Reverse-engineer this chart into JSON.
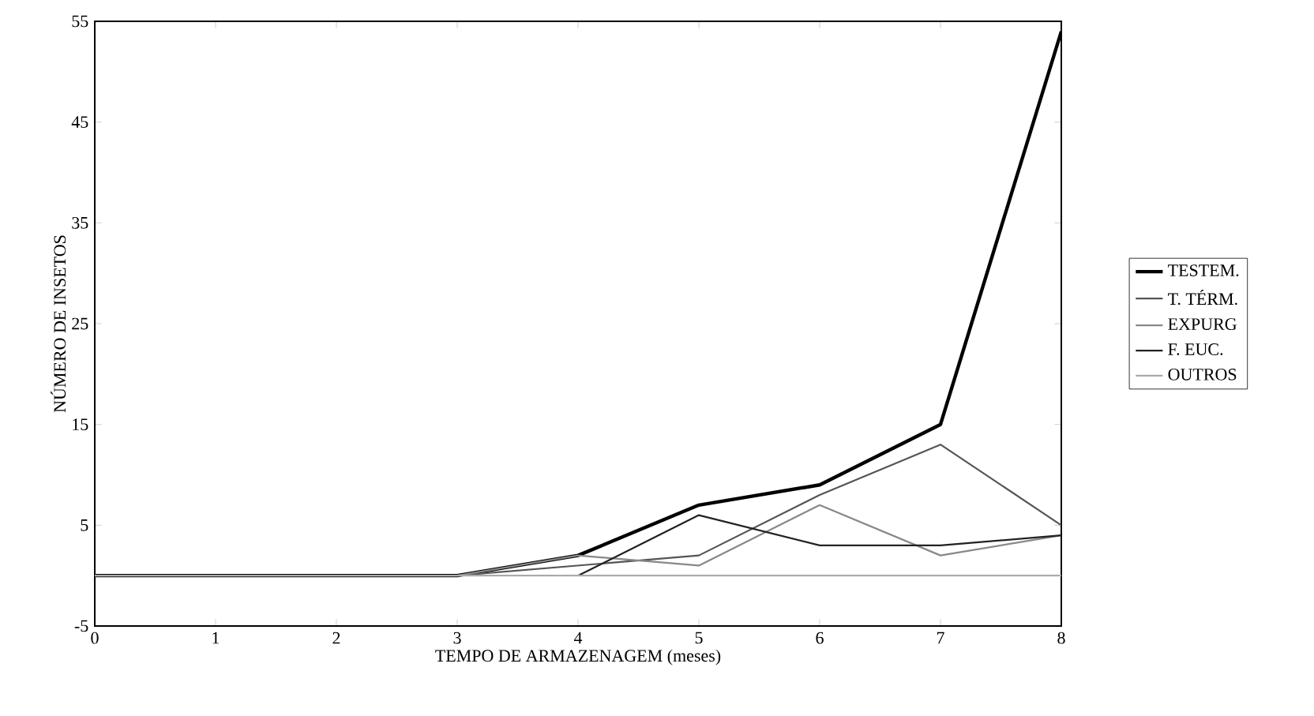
{
  "chart_data": {
    "type": "line",
    "xlabel": "TEMPO DE ARMAZENAGEM (meses)",
    "ylabel": "NÚMERO DE INSETOS",
    "x": [
      0,
      1,
      2,
      3,
      4,
      5,
      6,
      7,
      8
    ],
    "series": [
      {
        "name": "TESTEM.",
        "color": "#000000",
        "values": [
          0,
          0,
          0,
          0,
          2,
          7,
          9,
          15,
          54
        ]
      },
      {
        "name": "T. TÉRM.",
        "color": "#555555",
        "values": [
          0,
          0,
          0,
          0,
          1,
          2,
          8,
          13,
          5
        ]
      },
      {
        "name": "EXPURG",
        "color": "#888888",
        "values": [
          0,
          0,
          0,
          0,
          2,
          1,
          7,
          2,
          4
        ]
      },
      {
        "name": "F. EUC.",
        "color": "#222222",
        "values": [
          null,
          null,
          null,
          null,
          0,
          6,
          3,
          3,
          4
        ]
      },
      {
        "name": "OUTROS",
        "color": "#aaaaaa",
        "values": [
          0,
          0,
          0,
          0,
          0,
          0,
          0,
          0,
          0
        ]
      }
    ],
    "xlim": [
      0,
      8
    ],
    "xticks": [
      0,
      1,
      2,
      3,
      4,
      5,
      6,
      7,
      8
    ],
    "ylim": [
      -5,
      55
    ],
    "yticks": [
      -5,
      5,
      15,
      25,
      35,
      45,
      55
    ],
    "grid": false,
    "legend": "right",
    "marker": "none",
    "line_style": "solid"
  }
}
